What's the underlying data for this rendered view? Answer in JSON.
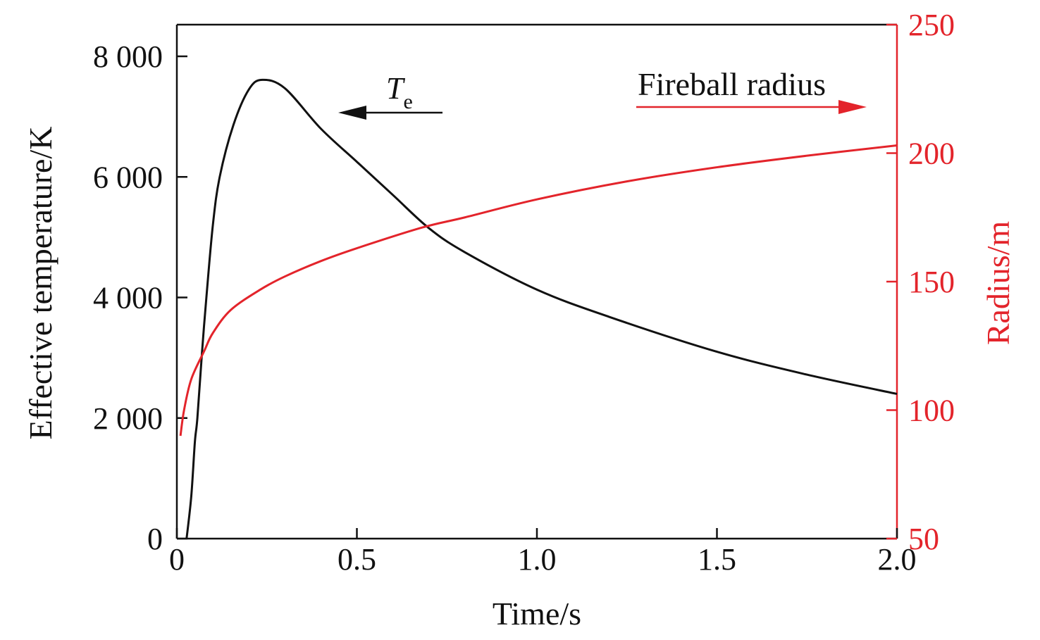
{
  "chart_data": {
    "type": "line",
    "title": "",
    "xlabel": "Time/s",
    "ylabel": "Effective temperature/K",
    "y2label": "Radius/m",
    "xlim": [
      0,
      2.0
    ],
    "ylim": [
      0,
      8500
    ],
    "y2lim": [
      50,
      250
    ],
    "xticks": [
      0,
      0.5,
      1.0,
      1.5,
      2.0
    ],
    "xtick_labels": [
      "0",
      "0.5",
      "1.0",
      "1.5",
      "2.0"
    ],
    "yticks": [
      0,
      2000,
      4000,
      6000,
      8000
    ],
    "ytick_labels": [
      "0",
      "2 000",
      "4 000",
      "6 000",
      "8 000"
    ],
    "y2ticks": [
      50,
      100,
      150,
      200,
      250
    ],
    "y2tick_labels": [
      "50",
      "100",
      "150",
      "200",
      "250"
    ],
    "grid": false,
    "colors": {
      "temperature": "#111111",
      "radius": "#e3242b"
    },
    "annotations": {
      "te_symbol": "T",
      "te_subscript": "e",
      "radius_label": "Fireball radius"
    },
    "series": [
      {
        "name": "Te",
        "axis": "left",
        "x": [
          0.027,
          0.04,
          0.05,
          0.057,
          0.07,
          0.082,
          0.1,
          0.119,
          0.157,
          0.2,
          0.237,
          0.3,
          0.4,
          0.5,
          0.6,
          0.7,
          0.8,
          1.0,
          1.2,
          1.5,
          1.75,
          2.0
        ],
        "y": [
          0,
          700,
          1600,
          2000,
          3100,
          4000,
          5200,
          6000,
          6860,
          7450,
          7610,
          7470,
          6800,
          6250,
          5700,
          5150,
          4750,
          4130,
          3680,
          3100,
          2720,
          2400
        ]
      },
      {
        "name": "Fireball radius",
        "axis": "right",
        "x": [
          0.01,
          0.02,
          0.04,
          0.076,
          0.1,
          0.15,
          0.233,
          0.3,
          0.4,
          0.5,
          0.68,
          0.8,
          1.0,
          1.25,
          1.5,
          1.75,
          2.0
        ],
        "y": [
          90,
          100,
          112,
          123,
          130,
          139,
          147,
          152,
          158,
          163,
          171,
          175,
          182,
          189,
          194.5,
          199,
          203
        ]
      }
    ]
  }
}
